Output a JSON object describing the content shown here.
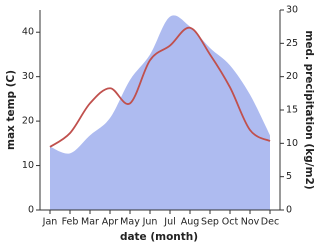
{
  "chart_data": {
    "type": "line",
    "x_label": "date (month)",
    "y_label": "max temp (C)",
    "y2_label": "med. precipitation (kg/m2)",
    "categories": [
      "Jan",
      "Feb",
      "Mar",
      "Apr",
      "May",
      "Jun",
      "Jul",
      "Aug",
      "Sep",
      "Oct",
      "Nov",
      "Dec"
    ],
    "series": [
      {
        "name": "med. precipitation",
        "type": "area",
        "axis": "y2",
        "color": "#aebbf0",
        "values": [
          9.5,
          8.5,
          11.2,
          13.8,
          19.5,
          23.3,
          29,
          27.5,
          24.3,
          21.7,
          17.3,
          11.2
        ]
      },
      {
        "name": "max temp",
        "type": "line",
        "color": "#c0504d",
        "values": [
          14.2,
          17.3,
          24,
          27.4,
          24,
          33.7,
          37,
          41,
          35,
          27.6,
          18,
          15.5
        ]
      }
    ],
    "ylim": [
      0,
      45
    ],
    "yticks": [
      0,
      10,
      20,
      30,
      40
    ],
    "y2lim": [
      0,
      30
    ],
    "y2ticks": [
      0,
      5,
      10,
      15,
      20,
      25,
      30
    ]
  }
}
